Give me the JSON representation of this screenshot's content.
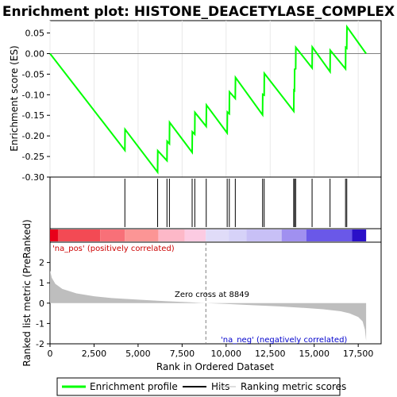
{
  "chart_data": {
    "type": "line",
    "title": "Enrichment plot: HISTONE_DEACETYLASE_COMPLEX",
    "colors": {
      "profile": "#00ff00",
      "hits": "#000000",
      "metric_fill": "#bebebe",
      "zero_line": "#808080",
      "pos_label": "#cc0000",
      "neg_label": "#0000cc"
    },
    "es_panel": {
      "ylabel": "Enrichment score (ES)",
      "ylim": [
        -0.3,
        0.08
      ],
      "yticks": [
        "0.05",
        "0.00",
        "-0.05",
        "-0.10",
        "-0.15",
        "-0.20",
        "-0.25",
        "-0.30"
      ],
      "ytick_values": [
        0.05,
        0.0,
        -0.05,
        -0.1,
        -0.15,
        -0.2,
        -0.25,
        -0.3
      ],
      "profile": [
        [
          0,
          0.0
        ],
        [
          4250,
          -0.235
        ],
        [
          4260,
          -0.184
        ],
        [
          6110,
          -0.288
        ],
        [
          6120,
          -0.236
        ],
        [
          6640,
          -0.26
        ],
        [
          6650,
          -0.213
        ],
        [
          6780,
          -0.219
        ],
        [
          6790,
          -0.167
        ],
        [
          8070,
          -0.24
        ],
        [
          8080,
          -0.19
        ],
        [
          8220,
          -0.196
        ],
        [
          8230,
          -0.143
        ],
        [
          8870,
          -0.177
        ],
        [
          8880,
          -0.125
        ],
        [
          10060,
          -0.193
        ],
        [
          10070,
          -0.142
        ],
        [
          10180,
          -0.146
        ],
        [
          10190,
          -0.093
        ],
        [
          10520,
          -0.109
        ],
        [
          10530,
          -0.058
        ],
        [
          12070,
          -0.149
        ],
        [
          12080,
          -0.099
        ],
        [
          12160,
          -0.101
        ],
        [
          12170,
          -0.048
        ],
        [
          13840,
          -0.14
        ],
        [
          13850,
          -0.089
        ],
        [
          13880,
          -0.09
        ],
        [
          13890,
          -0.038
        ],
        [
          13950,
          -0.037
        ],
        [
          13960,
          0.015
        ],
        [
          14880,
          -0.035
        ],
        [
          14890,
          0.016
        ],
        [
          15900,
          -0.044
        ],
        [
          15910,
          0.008
        ],
        [
          16780,
          -0.037
        ],
        [
          16790,
          0.015
        ],
        [
          16850,
          0.013
        ],
        [
          16860,
          0.065
        ],
        [
          17950,
          0.0
        ]
      ]
    },
    "hits": [
      4250,
      6110,
      6640,
      6780,
      8070,
      8220,
      8870,
      10060,
      10180,
      10520,
      12070,
      12160,
      13840,
      13880,
      13950,
      14880,
      15900,
      16780,
      16850
    ],
    "colorbar_segments": [
      {
        "from": 0,
        "to": 450,
        "color": "#e8001a"
      },
      {
        "from": 450,
        "to": 2850,
        "color": "#f34a54"
      },
      {
        "from": 2850,
        "to": 4250,
        "color": "#f87078"
      },
      {
        "from": 4250,
        "to": 6150,
        "color": "#fc9595"
      },
      {
        "from": 6150,
        "to": 7650,
        "color": "#fdb8c8"
      },
      {
        "from": 7650,
        "to": 8849,
        "color": "#fccbe2"
      },
      {
        "from": 8849,
        "to": 10150,
        "color": "#e0dcf8"
      },
      {
        "from": 10150,
        "to": 11150,
        "color": "#d6d2f8"
      },
      {
        "from": 11150,
        "to": 13150,
        "color": "#c8c0f6"
      },
      {
        "from": 13150,
        "to": 14550,
        "color": "#a090f0"
      },
      {
        "from": 14550,
        "to": 17150,
        "color": "#6a58e8"
      },
      {
        "from": 17150,
        "to": 17950,
        "color": "#2a10c8"
      }
    ],
    "metric_panel": {
      "ylabel": "Ranked list metric (PreRanked)",
      "ylim": [
        -2.0,
        3.0
      ],
      "yticks": [
        "2",
        "1",
        "0",
        "-1",
        "-2"
      ],
      "ytick_values": [
        2,
        1,
        0,
        -1,
        -2
      ],
      "curve": [
        [
          0,
          1.6
        ],
        [
          100,
          1.25
        ],
        [
          300,
          0.95
        ],
        [
          700,
          0.7
        ],
        [
          1500,
          0.48
        ],
        [
          2500,
          0.34
        ],
        [
          3500,
          0.25
        ],
        [
          5000,
          0.17
        ],
        [
          6500,
          0.1
        ],
        [
          8000,
          0.04
        ],
        [
          8849,
          0.0
        ],
        [
          10000,
          -0.04
        ],
        [
          11500,
          -0.1
        ],
        [
          13000,
          -0.16
        ],
        [
          14500,
          -0.24
        ],
        [
          15500,
          -0.3
        ],
        [
          16500,
          -0.4
        ],
        [
          17000,
          -0.5
        ],
        [
          17500,
          -0.68
        ],
        [
          17750,
          -0.9
        ],
        [
          17880,
          -1.3
        ],
        [
          17950,
          -1.85
        ]
      ],
      "zero_cross_text": "Zero cross at 8849",
      "zero_cross": 8849,
      "pos_text": "'na_pos' (positively correlated)",
      "neg_text": "'na_neg' (negatively correlated)"
    },
    "xaxis": {
      "xlabel": "Rank in Ordered Dataset",
      "xlim": [
        0,
        18800
      ],
      "xticks": [
        "0",
        "2,500",
        "5,000",
        "7,500",
        "10,000",
        "12,500",
        "15,000",
        "17,500"
      ],
      "xtick_values": [
        0,
        2500,
        5000,
        7500,
        10000,
        12500,
        15000,
        17500
      ]
    },
    "legend": {
      "placement": "bottom",
      "items": [
        {
          "label": "Enrichment profile",
          "color": "#00ff00"
        },
        {
          "label": "Hits",
          "color": "#000000"
        },
        {
          "label": "Ranking metric scores",
          "color": "#bebebe"
        }
      ]
    }
  }
}
